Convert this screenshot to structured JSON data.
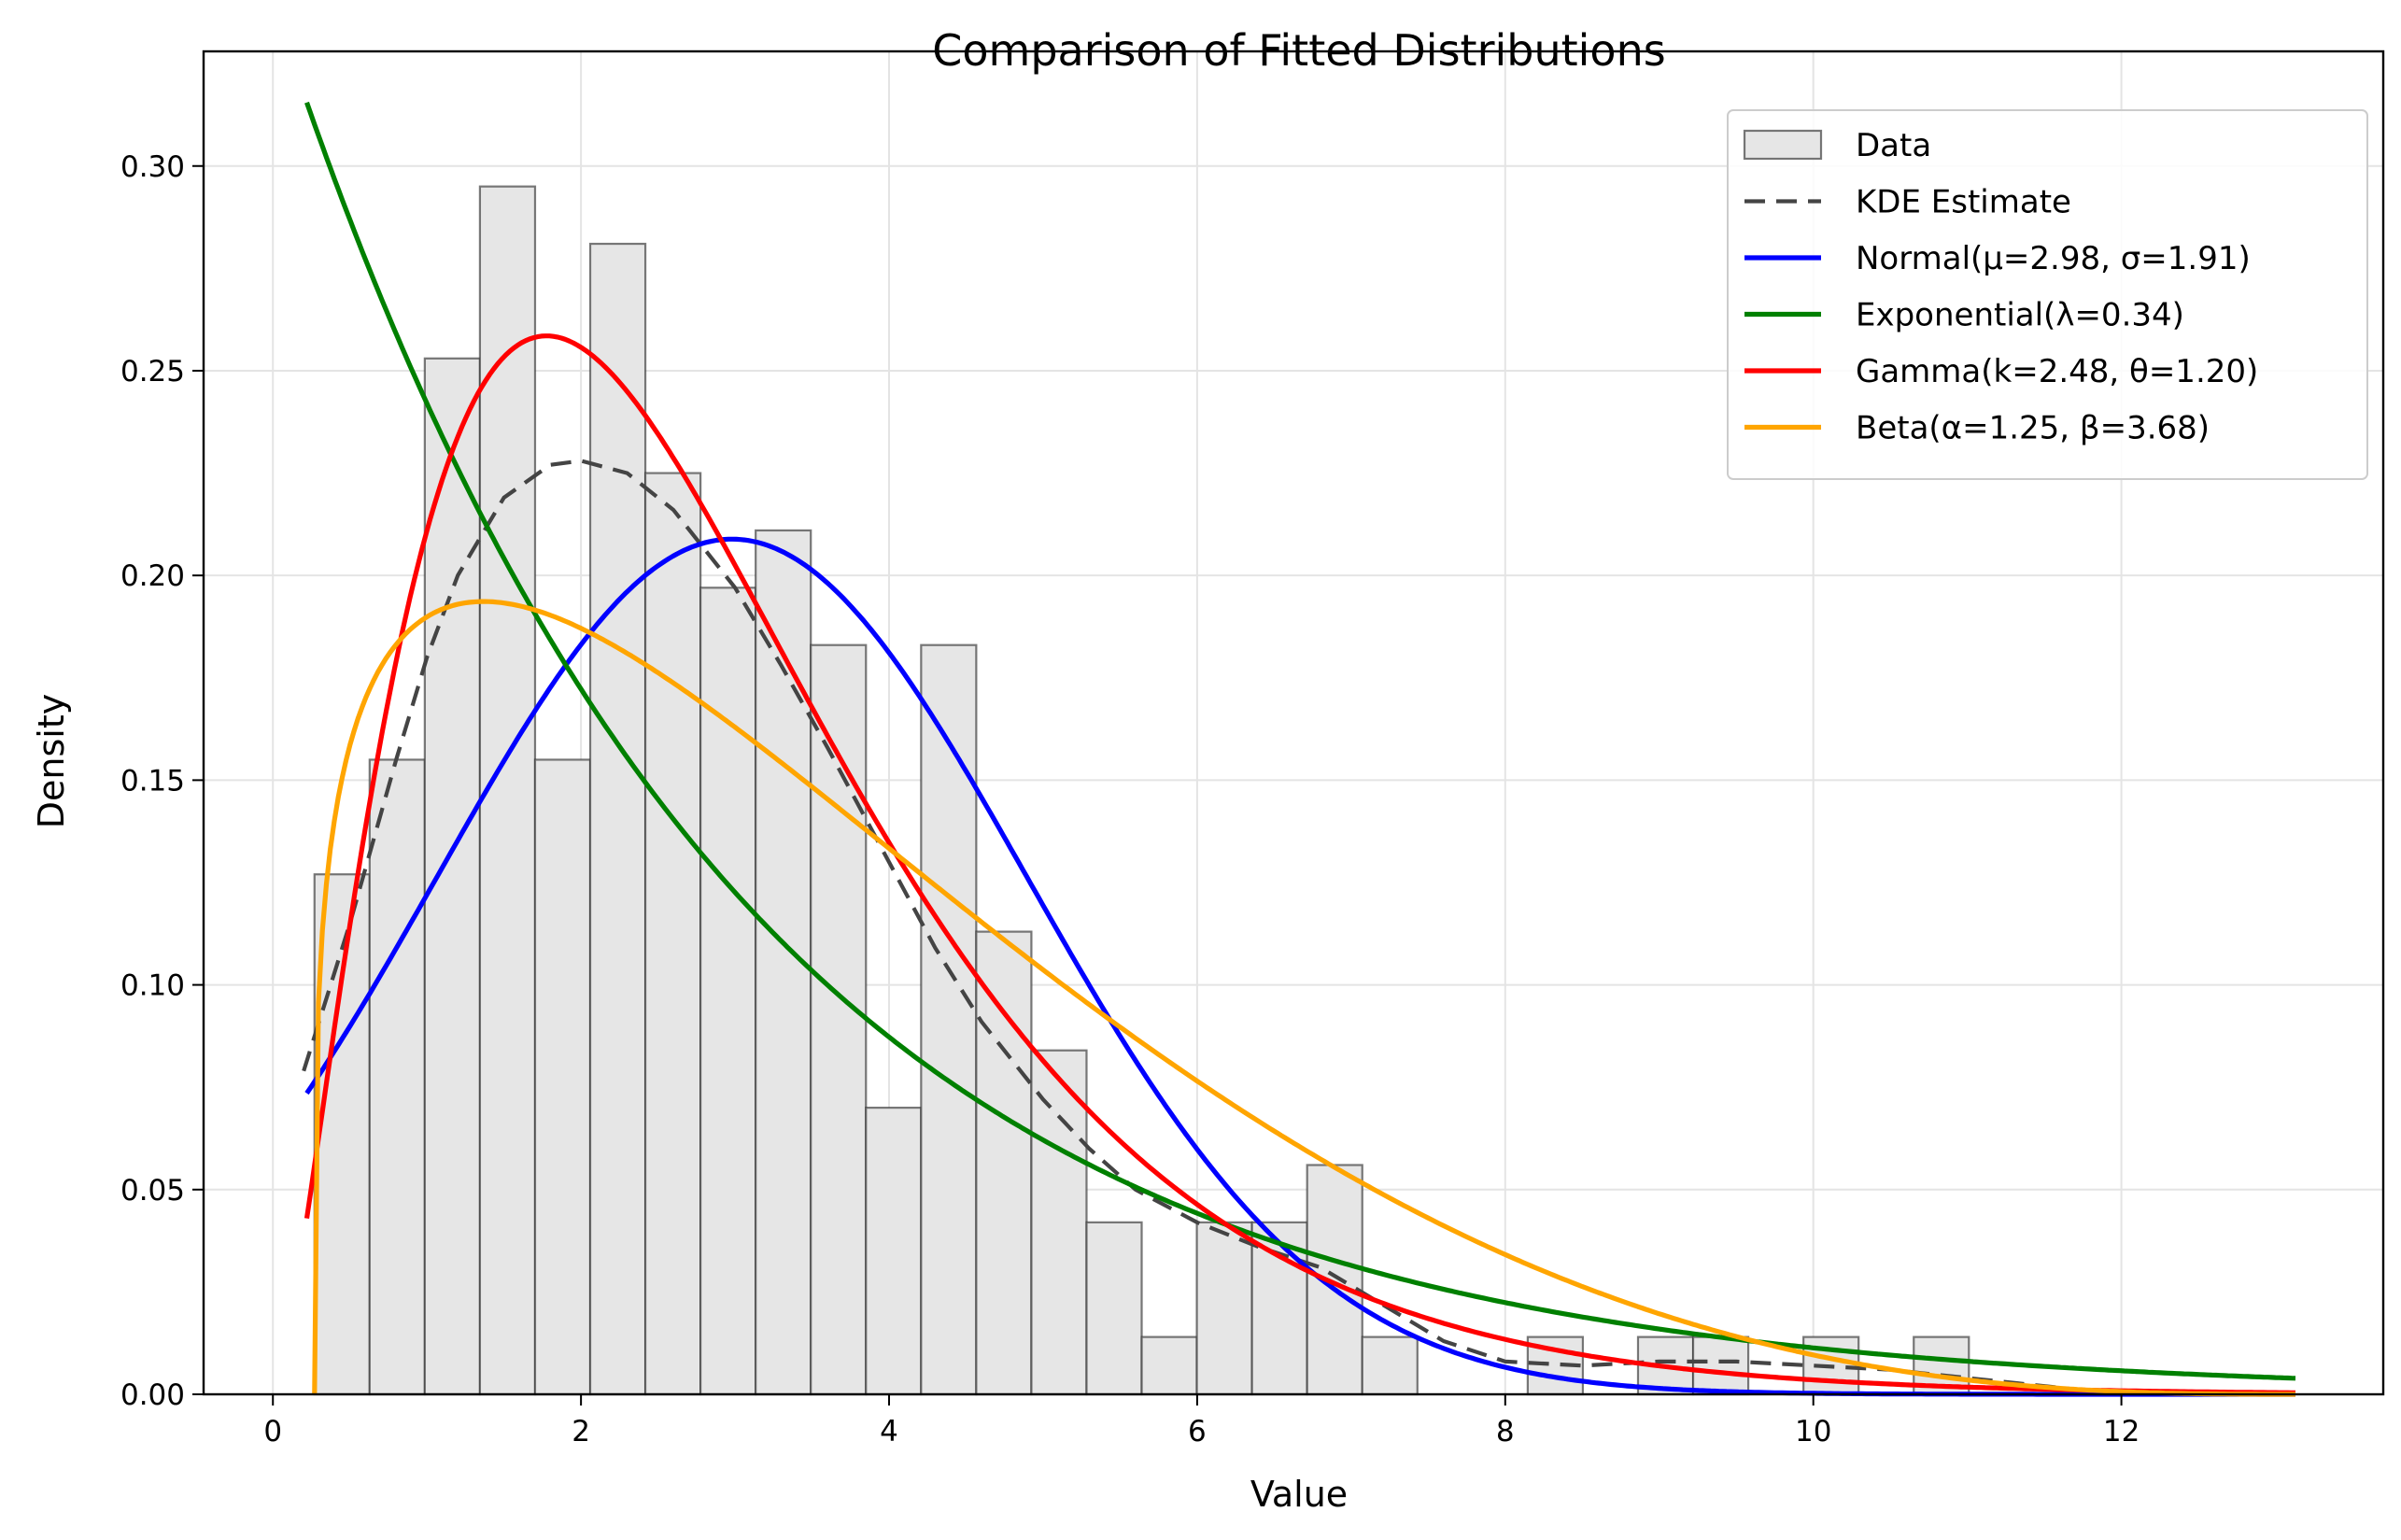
{
  "chart_data": {
    "type": "histogram+line",
    "title": "Comparison of Fitted Distributions",
    "xlabel": "Value",
    "ylabel": "Density",
    "xlim": [
      -0.45,
      13.7
    ],
    "ylim": [
      0,
      0.328
    ],
    "xticks": [
      "0",
      "2",
      "4",
      "6",
      "8",
      "10",
      "12"
    ],
    "yticks": [
      "0.00",
      "0.05",
      "0.10",
      "0.15",
      "0.20",
      "0.25",
      "0.30"
    ],
    "grid": true,
    "legend_position": "top-right",
    "histogram": {
      "name": "Data",
      "bin_start": 0.27,
      "bin_width": 0.358,
      "densities": [
        0.127,
        0.155,
        0.253,
        0.295,
        0.155,
        0.281,
        0.225,
        0.197,
        0.211,
        0.183,
        0.07,
        0.183,
        0.113,
        0.084,
        0.042,
        0.014,
        0.042,
        0.042,
        0.056,
        0.014,
        0.0,
        0.0,
        0.014,
        0.0,
        0.014,
        0.014,
        0.0,
        0.014,
        0.0,
        0.014,
        0.0,
        0.0,
        0.0,
        0.0,
        0.0,
        0.0
      ],
      "fill": "#e6e6e6",
      "edge": "#333333"
    },
    "series": [
      {
        "name": "KDE Estimate",
        "color": "#444444",
        "dash": true,
        "x": [
          0.2,
          0.5,
          0.8,
          1.0,
          1.2,
          1.5,
          1.8,
          2.0,
          2.3,
          2.6,
          3.0,
          3.3,
          3.6,
          4.0,
          4.3,
          4.6,
          5.0,
          5.3,
          5.6,
          6.0,
          6.4,
          6.8,
          7.2,
          7.6,
          8.0,
          8.5,
          9.0,
          9.5,
          10.0,
          10.5,
          11.0,
          11.5,
          12.0
        ],
        "y": [
          0.079,
          0.115,
          0.155,
          0.18,
          0.2,
          0.219,
          0.227,
          0.228,
          0.225,
          0.216,
          0.197,
          0.178,
          0.158,
          0.13,
          0.109,
          0.091,
          0.072,
          0.06,
          0.05,
          0.042,
          0.036,
          0.031,
          0.022,
          0.013,
          0.008,
          0.007,
          0.008,
          0.008,
          0.007,
          0.006,
          0.004,
          0.002,
          0.0
        ]
      },
      {
        "name": "Normal(μ=2.98, σ=1.91)",
        "color": "#0000ff",
        "dist": "normal",
        "params": {
          "mu": 2.98,
          "sigma": 1.91
        },
        "xrange": [
          0.22,
          13.13
        ]
      },
      {
        "name": "Exponential(λ=0.34)",
        "color": "#008000",
        "dist": "exponential",
        "params": {
          "lambda": 0.34
        },
        "xrange": [
          0.22,
          13.13
        ]
      },
      {
        "name": "Gamma(k=2.48, θ=1.20)",
        "color": "#ff0000",
        "dist": "gamma",
        "params": {
          "k": 2.48,
          "theta": 1.2
        },
        "xrange": [
          0.22,
          13.13
        ]
      },
      {
        "name": "Beta(α=1.25, β=3.68)",
        "color": "#ffa500",
        "dist": "beta",
        "params": {
          "alpha": 1.25,
          "beta": 3.68
        },
        "xrange": [
          0.27,
          13.13
        ]
      }
    ]
  }
}
